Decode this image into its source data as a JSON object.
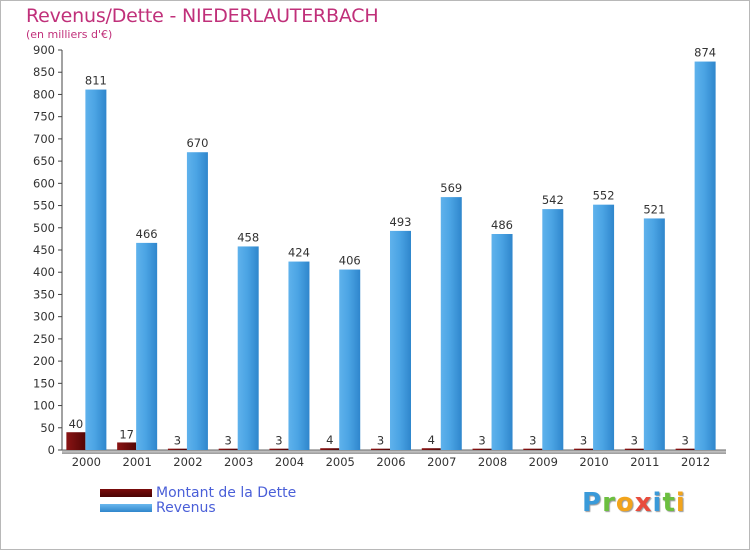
{
  "title": "Revenus/Dette - NIEDERLAUTERBACH",
  "subtitle": "(en milliers d'€)",
  "brand": {
    "letters": [
      "P",
      "r",
      "o",
      "x",
      "i",
      "t",
      "i"
    ],
    "colors": [
      "#3a9ad9",
      "#6cbf3f",
      "#f2a41c",
      "#e84c3d",
      "#3a9ad9",
      "#6cbf3f",
      "#f2a41c"
    ]
  },
  "chart_data": {
    "type": "bar",
    "title": "Revenus/Dette - NIEDERLAUTERBACH",
    "subtitle": "(en milliers d'€)",
    "xlabel": "",
    "ylabel": "",
    "categories": [
      "2000",
      "2001",
      "2002",
      "2003",
      "2004",
      "2005",
      "2006",
      "2007",
      "2008",
      "2009",
      "2010",
      "2011",
      "2012"
    ],
    "series": [
      {
        "name": "Montant de la Dette",
        "color": "#6b0a0a",
        "values": [
          40,
          17,
          3,
          3,
          3,
          4,
          3,
          4,
          3,
          3,
          3,
          3,
          3
        ]
      },
      {
        "name": "Revenus",
        "color": "#4aa3e2",
        "values": [
          811,
          466,
          670,
          458,
          424,
          406,
          493,
          569,
          486,
          542,
          552,
          521,
          874
        ]
      }
    ],
    "ylim": [
      0,
      900
    ],
    "yticks": [
      "0",
      "50",
      "100",
      "150",
      "200",
      "250",
      "300",
      "350",
      "400",
      "450",
      "500",
      "550",
      "600",
      "650",
      "700",
      "750",
      "800",
      "850",
      "900"
    ],
    "grid": false,
    "legend": "bottom-left"
  }
}
